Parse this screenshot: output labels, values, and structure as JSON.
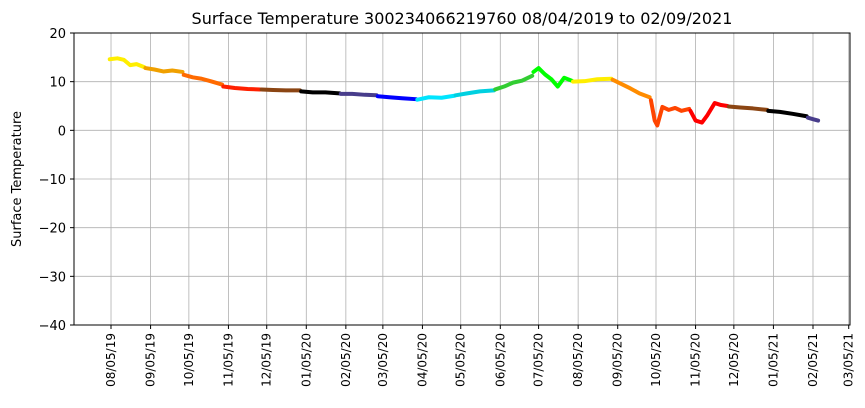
{
  "chart_data": {
    "type": "line",
    "title": "Surface Temperature 300234066219760  08/04/2019 to 02/09/2021",
    "ylabel": "Surface Temperature",
    "grid": true,
    "xlim": [
      "2019-07-07",
      "2021-03-06"
    ],
    "ylim": [
      -40,
      20
    ],
    "yticks": [
      {
        "value": -40,
        "label": "−40"
      },
      {
        "value": -30,
        "label": "−30"
      },
      {
        "value": -20,
        "label": "−20"
      },
      {
        "value": -10,
        "label": "−10"
      },
      0,
      10,
      20
    ],
    "xticks": [
      {
        "value": "2019-08-05",
        "label": "08/05/19"
      },
      {
        "value": "2019-09-05",
        "label": "09/05/19"
      },
      {
        "value": "2019-10-05",
        "label": "10/05/19"
      },
      {
        "value": "2019-11-05",
        "label": "11/05/19"
      },
      {
        "value": "2019-12-05",
        "label": "12/05/19"
      },
      {
        "value": "2020-01-05",
        "label": "01/05/20"
      },
      {
        "value": "2020-02-05",
        "label": "02/05/20"
      },
      {
        "value": "2020-03-05",
        "label": "03/05/20"
      },
      {
        "value": "2020-04-05",
        "label": "04/05/20"
      },
      {
        "value": "2020-05-05",
        "label": "05/05/20"
      },
      {
        "value": "2020-06-05",
        "label": "06/05/20"
      },
      {
        "value": "2020-07-05",
        "label": "07/05/20"
      },
      {
        "value": "2020-08-05",
        "label": "08/05/20"
      },
      {
        "value": "2020-09-05",
        "label": "09/05/20"
      },
      {
        "value": "2020-10-05",
        "label": "10/05/20"
      },
      {
        "value": "2020-11-05",
        "label": "11/05/20"
      },
      {
        "value": "2020-12-05",
        "label": "12/05/20"
      },
      {
        "value": "2021-01-05",
        "label": "01/05/21"
      },
      {
        "value": "2021-02-05",
        "label": "02/05/21"
      },
      {
        "value": "2021-03-05",
        "label": "03/05/21"
      }
    ],
    "series": [
      {
        "color": "#ffee00",
        "x": [
          "2019-08-04",
          "2019-08-10",
          "2019-08-15",
          "2019-08-20",
          "2019-08-25",
          "2019-08-31"
        ],
        "values": [
          14.6,
          14.8,
          14.5,
          13.4,
          13.6,
          13.0
        ]
      },
      {
        "color": "#f0a000",
        "x": [
          "2019-09-01",
          "2019-09-08",
          "2019-09-15",
          "2019-09-22",
          "2019-09-30"
        ],
        "values": [
          12.8,
          12.5,
          12.1,
          12.3,
          12.0
        ]
      },
      {
        "color": "#ff6a00",
        "x": [
          "2019-10-01",
          "2019-10-08",
          "2019-10-15",
          "2019-10-22",
          "2019-10-31"
        ],
        "values": [
          11.4,
          10.9,
          10.6,
          10.1,
          9.4
        ]
      },
      {
        "color": "#ff2000",
        "x": [
          "2019-11-01",
          "2019-11-10",
          "2019-11-20",
          "2019-11-30"
        ],
        "values": [
          9.0,
          8.7,
          8.5,
          8.4
        ]
      },
      {
        "color": "#8b4513",
        "x": [
          "2019-12-01",
          "2019-12-10",
          "2019-12-20",
          "2019-12-31"
        ],
        "values": [
          8.4,
          8.3,
          8.2,
          8.2
        ]
      },
      {
        "color": "#000000",
        "x": [
          "2020-01-01",
          "2020-01-10",
          "2020-01-20",
          "2020-01-31"
        ],
        "values": [
          8.0,
          7.8,
          7.8,
          7.6
        ]
      },
      {
        "color": "#483d8b",
        "x": [
          "2020-02-01",
          "2020-02-10",
          "2020-02-20",
          "2020-02-29"
        ],
        "values": [
          7.5,
          7.5,
          7.3,
          7.2
        ]
      },
      {
        "color": "#0000ff",
        "x": [
          "2020-03-01",
          "2020-03-10",
          "2020-03-20",
          "2020-03-31"
        ],
        "values": [
          7.0,
          6.8,
          6.6,
          6.4
        ]
      },
      {
        "color": "#00e5ff",
        "x": [
          "2020-04-01",
          "2020-04-10",
          "2020-04-20",
          "2020-04-30"
        ],
        "values": [
          6.3,
          6.8,
          6.7,
          7.1
        ]
      },
      {
        "color": "#00d0e0",
        "x": [
          "2020-05-01",
          "2020-05-10",
          "2020-05-20",
          "2020-05-31"
        ],
        "values": [
          7.2,
          7.6,
          8.0,
          8.2
        ]
      },
      {
        "color": "#32cd32",
        "x": [
          "2020-06-01",
          "2020-06-08",
          "2020-06-15",
          "2020-06-22",
          "2020-06-30"
        ],
        "values": [
          8.4,
          9.0,
          9.8,
          10.2,
          11.2
        ]
      },
      {
        "color": "#00ff00",
        "x": [
          "2020-07-01",
          "2020-07-05",
          "2020-07-10",
          "2020-07-15",
          "2020-07-20",
          "2020-07-25",
          "2020-07-31"
        ],
        "values": [
          12.0,
          12.8,
          11.5,
          10.5,
          9.0,
          10.8,
          10.2
        ]
      },
      {
        "color": "#ffee00",
        "x": [
          "2020-08-01",
          "2020-08-10",
          "2020-08-20",
          "2020-08-31"
        ],
        "values": [
          10.0,
          10.1,
          10.5,
          10.6
        ]
      },
      {
        "color": "#ff8c00",
        "x": [
          "2020-09-01",
          "2020-09-08",
          "2020-09-15",
          "2020-09-22",
          "2020-09-30"
        ],
        "values": [
          10.4,
          9.5,
          8.6,
          7.6,
          6.8
        ]
      },
      {
        "color": "#ff4500",
        "x": [
          "2020-10-01",
          "2020-10-04",
          "2020-10-06",
          "2020-10-10",
          "2020-10-15",
          "2020-10-20",
          "2020-10-25",
          "2020-10-31"
        ],
        "values": [
          6.2,
          2.0,
          1.0,
          4.8,
          4.2,
          4.6,
          4.0,
          4.4
        ]
      },
      {
        "color": "#ff0000",
        "x": [
          "2020-11-01",
          "2020-11-05",
          "2020-11-10",
          "2020-11-14",
          "2020-11-20",
          "2020-11-25",
          "2020-11-30"
        ],
        "values": [
          4.0,
          2.0,
          1.6,
          3.0,
          5.6,
          5.2,
          5.0
        ]
      },
      {
        "color": "#8b4513",
        "x": [
          "2020-12-01",
          "2020-12-10",
          "2020-12-20",
          "2020-12-31"
        ],
        "values": [
          4.9,
          4.7,
          4.5,
          4.2
        ]
      },
      {
        "color": "#000000",
        "x": [
          "2021-01-01",
          "2021-01-10",
          "2021-01-20",
          "2021-01-31"
        ],
        "values": [
          4.0,
          3.8,
          3.4,
          2.9
        ]
      },
      {
        "color": "#483d8b",
        "x": [
          "2021-02-01",
          "2021-02-05",
          "2021-02-09"
        ],
        "values": [
          2.6,
          2.3,
          2.0
        ]
      }
    ]
  }
}
